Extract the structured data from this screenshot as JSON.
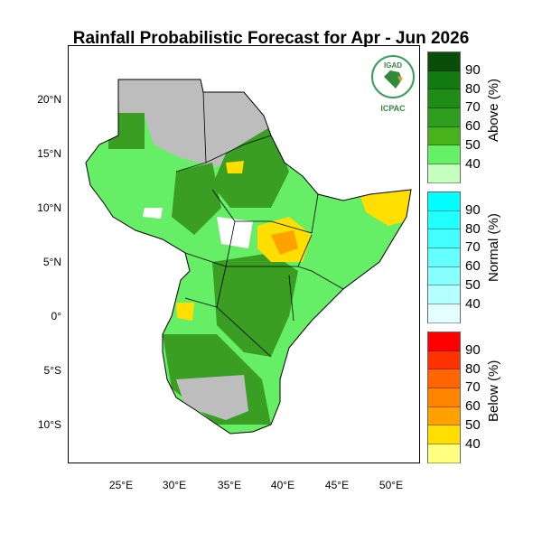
{
  "title": "Rainfall Probabilistic Forecast for Apr - Jun 2026",
  "lat_ticks": [
    "20°N",
    "15°N",
    "10°N",
    "5°N",
    "0°",
    "5°S",
    "10°S"
  ],
  "lon_ticks": [
    "25°E",
    "30°E",
    "35°E",
    "40°E",
    "45°E",
    "50°E"
  ],
  "logo": {
    "top": "IGAD",
    "bottom": "ICPAC"
  },
  "legends": [
    {
      "title": "Above (%)",
      "levels": [
        "90",
        "80",
        "70",
        "60",
        "50",
        "40"
      ],
      "colors": [
        "#0a4d0a",
        "#137a12",
        "#1f8c18",
        "#2f9e1e",
        "#47b21c",
        "#66f066",
        "#c4ffc0"
      ]
    },
    {
      "title": "Normal (%)",
      "levels": [
        "90",
        "80",
        "70",
        "60",
        "50",
        "40"
      ],
      "colors": [
        "#00ffff",
        "#22ffff",
        "#44ffff",
        "#66ffff",
        "#88ffff",
        "#b4ffff",
        "#e4ffff"
      ]
    },
    {
      "title": "Below (%)",
      "levels": [
        "90",
        "80",
        "70",
        "60",
        "50",
        "40"
      ],
      "colors": [
        "#ff0000",
        "#ff3300",
        "#ff6600",
        "#ff8400",
        "#ffa200",
        "#ffde00",
        "#ffff80"
      ]
    }
  ],
  "map_colors": {
    "light_green": "#66ee66",
    "dark_green": "#3a9e22",
    "gray": "#bdbdbd",
    "yellow": "#ffde00",
    "orange": "#ffa200",
    "white": "#ffffff"
  }
}
